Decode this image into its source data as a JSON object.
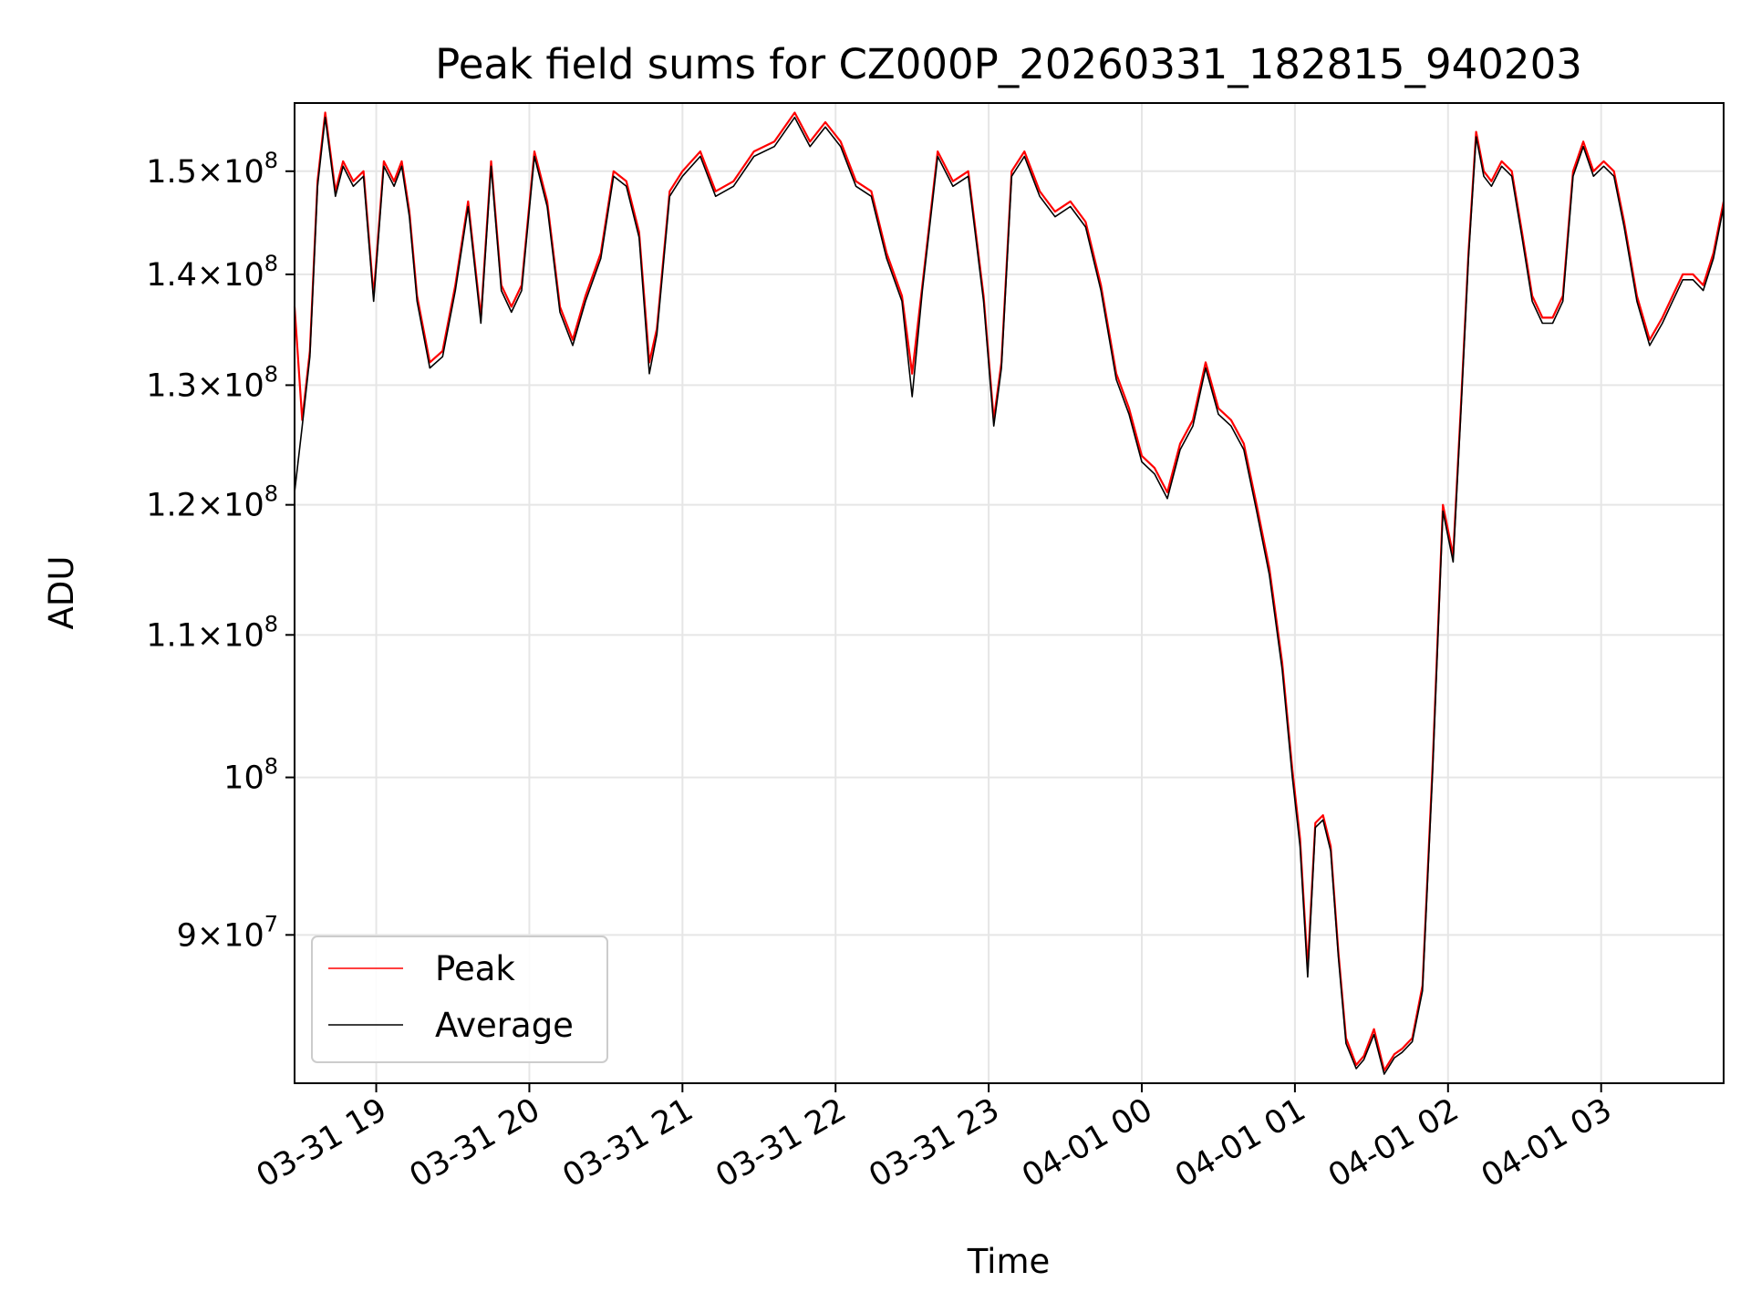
{
  "chart_data": {
    "type": "line",
    "title": "Peak field sums for CZ000P_20260331_182815_940203",
    "xlabel": "Time",
    "ylabel": "ADU",
    "y_scale": "log",
    "ylim": [
      81500000,
      157000000
    ],
    "xlim": [
      "2026-03-31 18:28",
      "2026-04-01 03:48"
    ],
    "grid": true,
    "legend_position": "lower-left",
    "x_ticks": [
      "03-31 19",
      "03-31 20",
      "03-31 21",
      "03-31 22",
      "03-31 23",
      "04-01 00",
      "04-01 01",
      "04-01 02",
      "04-01 03"
    ],
    "y_ticks": [
      {
        "value": 150000000,
        "mantissa": "1.5",
        "exponent": "8"
      },
      {
        "value": 140000000,
        "mantissa": "1.4",
        "exponent": "8"
      },
      {
        "value": 130000000,
        "mantissa": "1.3",
        "exponent": "8"
      },
      {
        "value": 120000000,
        "mantissa": "1.2",
        "exponent": "8"
      },
      {
        "value": 110000000,
        "mantissa": "1.1",
        "exponent": "8"
      },
      {
        "value": 100000000,
        "mantissa": "",
        "exponent": "8"
      },
      {
        "value": 90000000,
        "mantissa": "9",
        "exponent": "7"
      }
    ],
    "series": [
      {
        "name": "Peak",
        "color": "#ff0000",
        "x": [
          "2026-03-31 18:28",
          "2026-03-31 18:31",
          "2026-03-31 18:34",
          "2026-03-31 18:37",
          "2026-03-31 18:40",
          "2026-03-31 18:44",
          "2026-03-31 18:47",
          "2026-03-31 18:51",
          "2026-03-31 18:55",
          "2026-03-31 18:59",
          "2026-03-31 19:03",
          "2026-03-31 19:07",
          "2026-03-31 19:10",
          "2026-03-31 19:13",
          "2026-03-31 19:16",
          "2026-03-31 19:21",
          "2026-03-31 19:26",
          "2026-03-31 19:31",
          "2026-03-31 19:36",
          "2026-03-31 19:41",
          "2026-03-31 19:45",
          "2026-03-31 19:49",
          "2026-03-31 19:53",
          "2026-03-31 19:57",
          "2026-03-31 20:02",
          "2026-03-31 20:07",
          "2026-03-31 20:12",
          "2026-03-31 20:17",
          "2026-03-31 20:22",
          "2026-03-31 20:28",
          "2026-03-31 20:33",
          "2026-03-31 20:38",
          "2026-03-31 20:43",
          "2026-03-31 20:47",
          "2026-03-31 20:50",
          "2026-03-31 20:55",
          "2026-03-31 21:00",
          "2026-03-31 21:07",
          "2026-03-31 21:13",
          "2026-03-31 21:20",
          "2026-03-31 21:28",
          "2026-03-31 21:36",
          "2026-03-31 21:44",
          "2026-03-31 21:50",
          "2026-03-31 21:56",
          "2026-03-31 22:02",
          "2026-03-31 22:08",
          "2026-03-31 22:14",
          "2026-03-31 22:20",
          "2026-03-31 22:26",
          "2026-03-31 22:30",
          "2026-03-31 22:34",
          "2026-03-31 22:40",
          "2026-03-31 22:46",
          "2026-03-31 22:52",
          "2026-03-31 22:58",
          "2026-03-31 23:02",
          "2026-03-31 23:05",
          "2026-03-31 23:09",
          "2026-03-31 23:14",
          "2026-03-31 23:20",
          "2026-03-31 23:26",
          "2026-03-31 23:32",
          "2026-03-31 23:38",
          "2026-03-31 23:44",
          "2026-03-31 23:50",
          "2026-03-31 23:55",
          "2026-04-01 00:00",
          "2026-04-01 00:05",
          "2026-04-01 00:10",
          "2026-04-01 00:15",
          "2026-04-01 00:20",
          "2026-04-01 00:25",
          "2026-04-01 00:30",
          "2026-04-01 00:35",
          "2026-04-01 00:40",
          "2026-04-01 00:45",
          "2026-04-01 00:50",
          "2026-04-01 00:55",
          "2026-04-01 00:59",
          "2026-04-01 01:02",
          "2026-04-01 01:05",
          "2026-04-01 01:08",
          "2026-04-01 01:11",
          "2026-04-01 01:14",
          "2026-04-01 01:17",
          "2026-04-01 01:20",
          "2026-04-01 01:24",
          "2026-04-01 01:27",
          "2026-04-01 01:31",
          "2026-04-01 01:35",
          "2026-04-01 01:39",
          "2026-04-01 01:42",
          "2026-04-01 01:46",
          "2026-04-01 01:50",
          "2026-04-01 01:54",
          "2026-04-01 01:58",
          "2026-04-01 02:02",
          "2026-04-01 02:05",
          "2026-04-01 02:08",
          "2026-04-01 02:11",
          "2026-04-01 02:14",
          "2026-04-01 02:17",
          "2026-04-01 02:21",
          "2026-04-01 02:25",
          "2026-04-01 02:29",
          "2026-04-01 02:33",
          "2026-04-01 02:37",
          "2026-04-01 02:41",
          "2026-04-01 02:45",
          "2026-04-01 02:49",
          "2026-04-01 02:53",
          "2026-04-01 02:57",
          "2026-04-01 03:01",
          "2026-04-01 03:05",
          "2026-04-01 03:09",
          "2026-04-01 03:14",
          "2026-04-01 03:19",
          "2026-04-01 03:24",
          "2026-04-01 03:28",
          "2026-04-01 03:32",
          "2026-04-01 03:36",
          "2026-04-01 03:40",
          "2026-04-01 03:44",
          "2026-04-01 03:48"
        ],
        "values": [
          137000000,
          127000000,
          133000000,
          149000000,
          156000000,
          148000000,
          151000000,
          149000000,
          150000000,
          138000000,
          151000000,
          149000000,
          151000000,
          146000000,
          138000000,
          132000000,
          133000000,
          139000000,
          147000000,
          136000000,
          151000000,
          139000000,
          137000000,
          139000000,
          152000000,
          147000000,
          137000000,
          134000000,
          138000000,
          142000000,
          150000000,
          149000000,
          144000000,
          132000000,
          135000000,
          148000000,
          150000000,
          152000000,
          148000000,
          149000000,
          152000000,
          153000000,
          156000000,
          153000000,
          155000000,
          153000000,
          149000000,
          148000000,
          142000000,
          138000000,
          131000000,
          139000000,
          152000000,
          149000000,
          150000000,
          138000000,
          127000000,
          132000000,
          150000000,
          152000000,
          148000000,
          146000000,
          147000000,
          145000000,
          139000000,
          131000000,
          128000000,
          124000000,
          123000000,
          121000000,
          125000000,
          127000000,
          132000000,
          128000000,
          127000000,
          125000000,
          120000000,
          115000000,
          108000000,
          100500000,
          96000000,
          88000000,
          97000000,
          97500000,
          95500000,
          89000000,
          84000000,
          82500000,
          83000000,
          84500000,
          82200000,
          83100000,
          83400000,
          84000000,
          87000000,
          101000000,
          120000000,
          116000000,
          128000000,
          142000000,
          154000000,
          150000000,
          149000000,
          151000000,
          150000000,
          144000000,
          138000000,
          136000000,
          136000000,
          138000000,
          150000000,
          153000000,
          150000000,
          151000000,
          150000000,
          145000000,
          138000000,
          134000000,
          136000000,
          138000000,
          140000000,
          140000000,
          139000000,
          142000000,
          147000000
        ]
      },
      {
        "name": "Average",
        "color": "#000000",
        "x": [
          "2026-03-31 18:28",
          "2026-03-31 18:31",
          "2026-03-31 18:34",
          "2026-03-31 18:37",
          "2026-03-31 18:40",
          "2026-03-31 18:44",
          "2026-03-31 18:47",
          "2026-03-31 18:51",
          "2026-03-31 18:55",
          "2026-03-31 18:59",
          "2026-03-31 19:03",
          "2026-03-31 19:07",
          "2026-03-31 19:10",
          "2026-03-31 19:13",
          "2026-03-31 19:16",
          "2026-03-31 19:21",
          "2026-03-31 19:26",
          "2026-03-31 19:31",
          "2026-03-31 19:36",
          "2026-03-31 19:41",
          "2026-03-31 19:45",
          "2026-03-31 19:49",
          "2026-03-31 19:53",
          "2026-03-31 19:57",
          "2026-03-31 20:02",
          "2026-03-31 20:07",
          "2026-03-31 20:12",
          "2026-03-31 20:17",
          "2026-03-31 20:22",
          "2026-03-31 20:28",
          "2026-03-31 20:33",
          "2026-03-31 20:38",
          "2026-03-31 20:43",
          "2026-03-31 20:47",
          "2026-03-31 20:50",
          "2026-03-31 20:55",
          "2026-03-31 21:00",
          "2026-03-31 21:07",
          "2026-03-31 21:13",
          "2026-03-31 21:20",
          "2026-03-31 21:28",
          "2026-03-31 21:36",
          "2026-03-31 21:44",
          "2026-03-31 21:50",
          "2026-03-31 21:56",
          "2026-03-31 22:02",
          "2026-03-31 22:08",
          "2026-03-31 22:14",
          "2026-03-31 22:20",
          "2026-03-31 22:26",
          "2026-03-31 22:30",
          "2026-03-31 22:34",
          "2026-03-31 22:40",
          "2026-03-31 22:46",
          "2026-03-31 22:52",
          "2026-03-31 22:58",
          "2026-03-31 23:02",
          "2026-03-31 23:05",
          "2026-03-31 23:09",
          "2026-03-31 23:14",
          "2026-03-31 23:20",
          "2026-03-31 23:26",
          "2026-03-31 23:32",
          "2026-03-31 23:38",
          "2026-03-31 23:44",
          "2026-03-31 23:50",
          "2026-03-31 23:55",
          "2026-04-01 00:00",
          "2026-04-01 00:05",
          "2026-04-01 00:10",
          "2026-04-01 00:15",
          "2026-04-01 00:20",
          "2026-04-01 00:25",
          "2026-04-01 00:30",
          "2026-04-01 00:35",
          "2026-04-01 00:40",
          "2026-04-01 00:45",
          "2026-04-01 00:50",
          "2026-04-01 00:55",
          "2026-04-01 00:59",
          "2026-04-01 01:02",
          "2026-04-01 01:05",
          "2026-04-01 01:08",
          "2026-04-01 01:11",
          "2026-04-01 01:14",
          "2026-04-01 01:17",
          "2026-04-01 01:20",
          "2026-04-01 01:24",
          "2026-04-01 01:27",
          "2026-04-01 01:31",
          "2026-04-01 01:35",
          "2026-04-01 01:39",
          "2026-04-01 01:42",
          "2026-04-01 01:46",
          "2026-04-01 01:50",
          "2026-04-01 01:54",
          "2026-04-01 01:58",
          "2026-04-01 02:02",
          "2026-04-01 02:05",
          "2026-04-01 02:08",
          "2026-04-01 02:11",
          "2026-04-01 02:14",
          "2026-04-01 02:17",
          "2026-04-01 02:21",
          "2026-04-01 02:25",
          "2026-04-01 02:29",
          "2026-04-01 02:33",
          "2026-04-01 02:37",
          "2026-04-01 02:41",
          "2026-04-01 02:45",
          "2026-04-01 02:49",
          "2026-04-01 02:53",
          "2026-04-01 02:57",
          "2026-04-01 03:01",
          "2026-04-01 03:05",
          "2026-04-01 03:09",
          "2026-04-01 03:14",
          "2026-04-01 03:19",
          "2026-04-01 03:24",
          "2026-04-01 03:28",
          "2026-04-01 03:32",
          "2026-04-01 03:36",
          "2026-04-01 03:40",
          "2026-04-01 03:44",
          "2026-04-01 03:48"
        ],
        "values": [
          121000000,
          126500000,
          132500000,
          148500000,
          155500000,
          147500000,
          150500000,
          148500000,
          149500000,
          137500000,
          150500000,
          148500000,
          150500000,
          145500000,
          137500000,
          131500000,
          132500000,
          138500000,
          146500000,
          135500000,
          150500000,
          138500000,
          136500000,
          138500000,
          151500000,
          146500000,
          136500000,
          133500000,
          137500000,
          141500000,
          149500000,
          148500000,
          143500000,
          131000000,
          134500000,
          147500000,
          149500000,
          151500000,
          147500000,
          148500000,
          151500000,
          152500000,
          155500000,
          152500000,
          154500000,
          152500000,
          148500000,
          147500000,
          141500000,
          137500000,
          129000000,
          138500000,
          151500000,
          148500000,
          149500000,
          137500000,
          126500000,
          131500000,
          149500000,
          151500000,
          147500000,
          145500000,
          146500000,
          144500000,
          138500000,
          130500000,
          127500000,
          123500000,
          122500000,
          120500000,
          124500000,
          126500000,
          131500000,
          127500000,
          126500000,
          124500000,
          119500000,
          114500000,
          107500000,
          100000000,
          95500000,
          87500000,
          96700000,
          97200000,
          95200000,
          88700000,
          83700000,
          82300000,
          82800000,
          84200000,
          82000000,
          82900000,
          83200000,
          83800000,
          86700000,
          100500000,
          119500000,
          115500000,
          127500000,
          141500000,
          153500000,
          149500000,
          148500000,
          150500000,
          149500000,
          143500000,
          137500000,
          135500000,
          135500000,
          137500000,
          149500000,
          152500000,
          149500000,
          150500000,
          149500000,
          144500000,
          137500000,
          133500000,
          135500000,
          137500000,
          139500000,
          139500000,
          138500000,
          141500000,
          146500000
        ]
      }
    ]
  }
}
